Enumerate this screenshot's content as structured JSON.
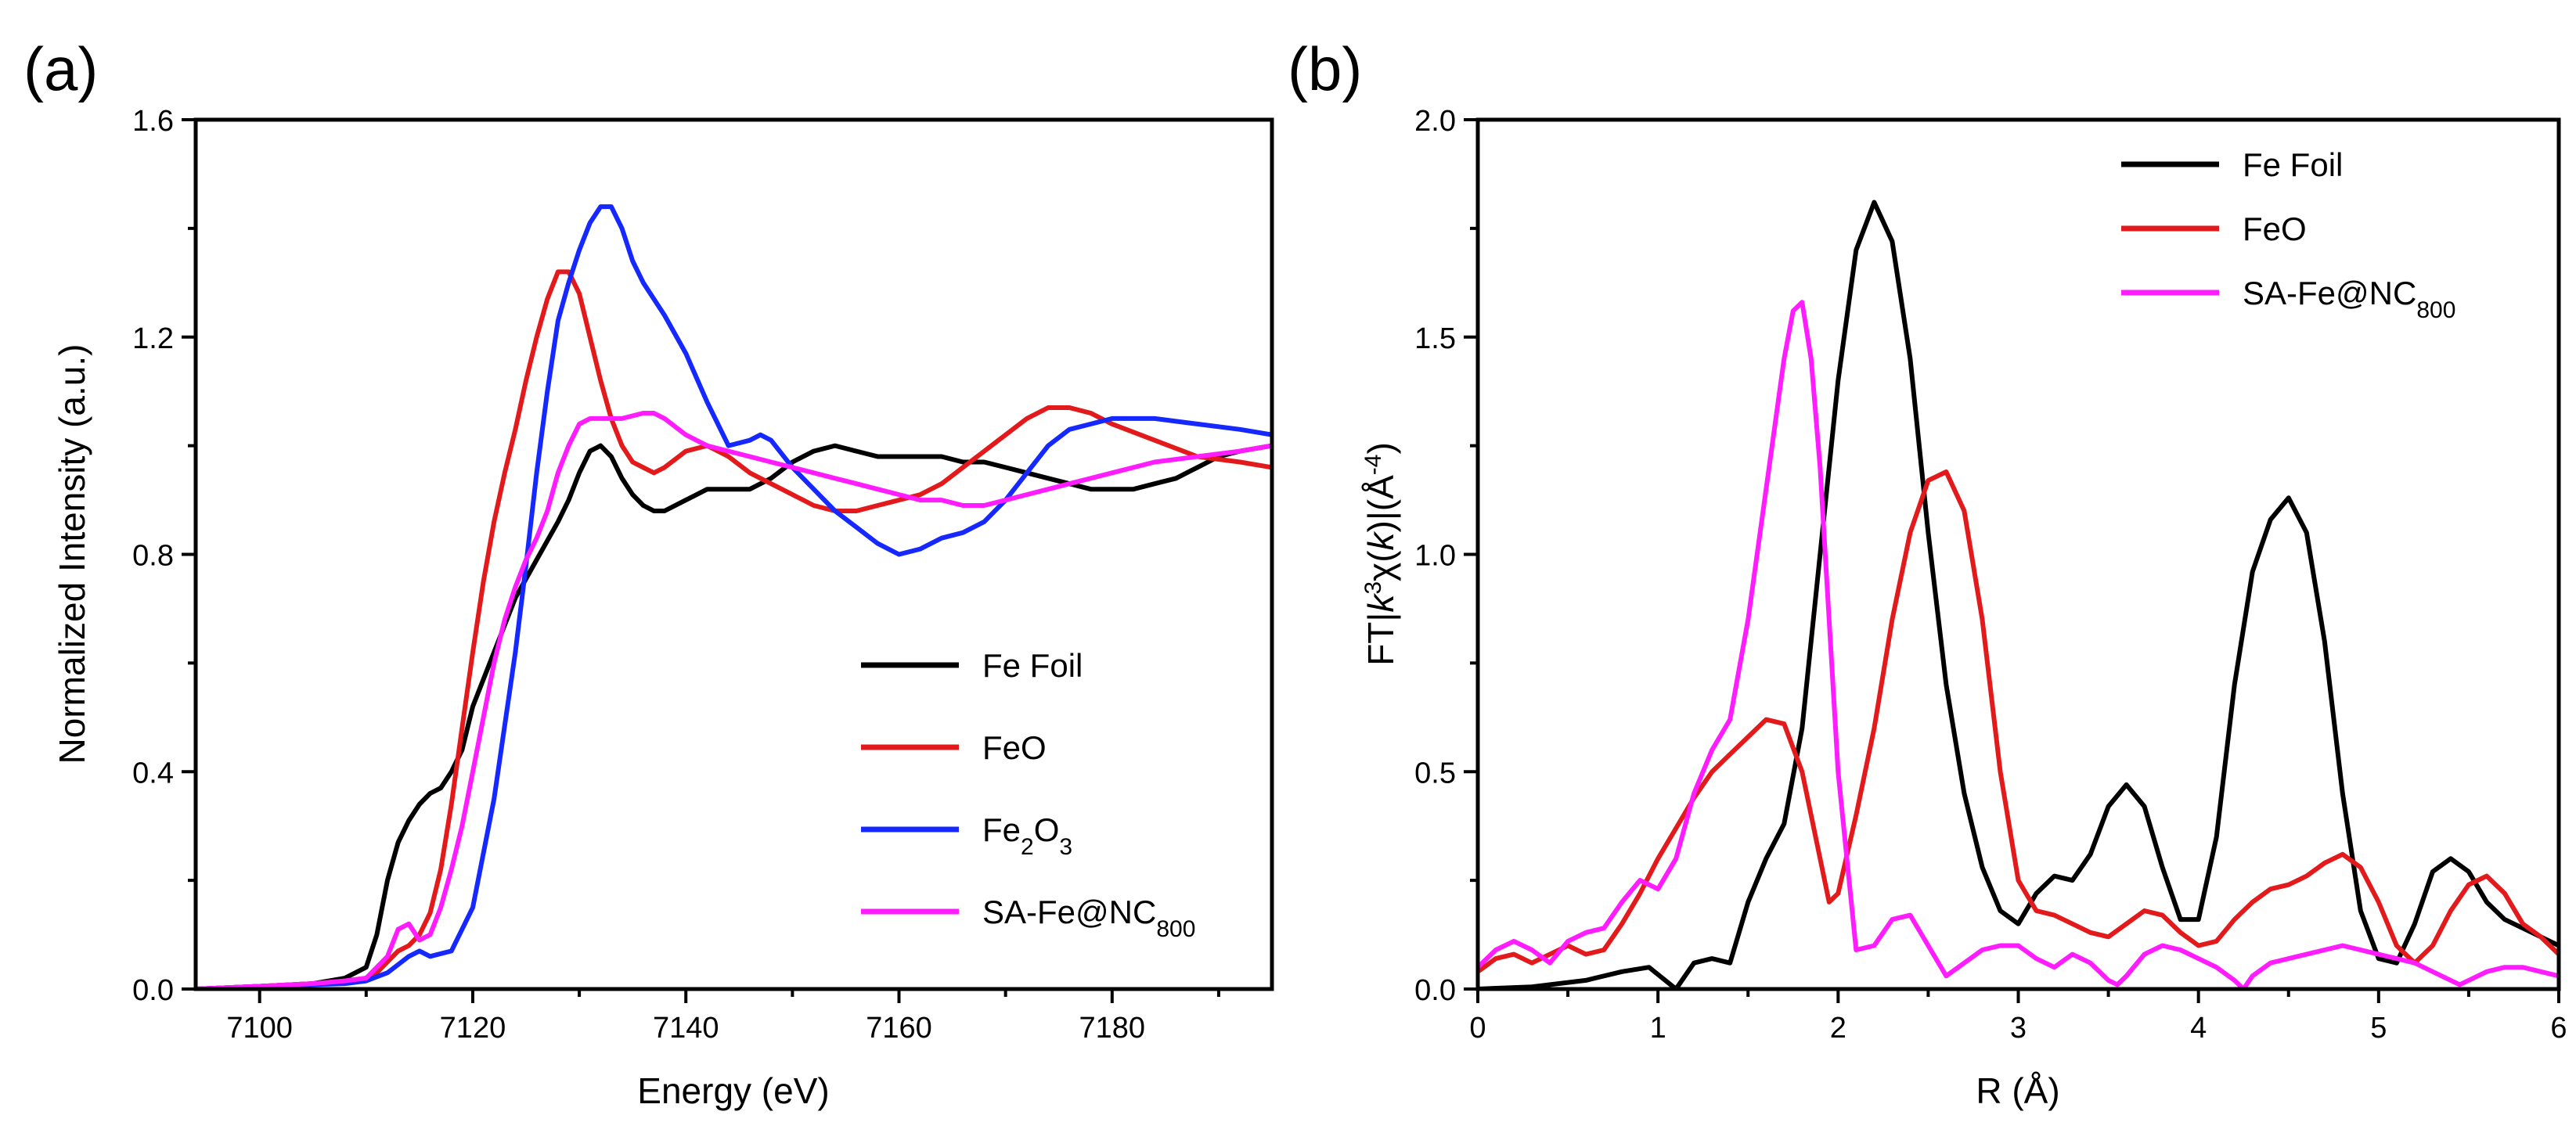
{
  "chart_data": [
    {
      "type": "line",
      "panel_label": "(a)",
      "xlabel": "Energy (eV)",
      "ylabel": "Normalized Intensity (a.u.)",
      "xlim": [
        7094,
        7195
      ],
      "ylim": [
        0,
        1.6
      ],
      "xticks": [
        7100,
        7120,
        7140,
        7160,
        7180
      ],
      "xtick_labels": [
        "7100",
        "7120",
        "7140",
        "7160",
        "7180"
      ],
      "yticks": [
        0,
        0.4,
        0.8,
        1.2,
        1.6
      ],
      "ytick_labels": [
        "0.0",
        "0.4",
        "0.8",
        "1.2",
        "1.6"
      ],
      "legend_position": "bottom-right",
      "series": [
        {
          "name": "Fe Foil",
          "legend_main": "Fe Foil",
          "legend_sub": "",
          "legend_tail": "",
          "color": "#000000",
          "x": [
            7094,
            7100,
            7105,
            7108,
            7110,
            7111,
            7112,
            7113,
            7114,
            7115,
            7116,
            7117,
            7118,
            7119,
            7120,
            7122,
            7124,
            7126,
            7128,
            7129,
            7130,
            7131,
            7132,
            7133,
            7134,
            7135,
            7136,
            7137,
            7138,
            7140,
            7142,
            7144,
            7146,
            7148,
            7150,
            7152,
            7154,
            7156,
            7158,
            7160,
            7162,
            7164,
            7166,
            7168,
            7170,
            7172,
            7174,
            7176,
            7178,
            7180,
            7182,
            7184,
            7186,
            7188,
            7190,
            7192,
            7195
          ],
          "y": [
            0.0,
            0.005,
            0.01,
            0.02,
            0.04,
            0.1,
            0.2,
            0.27,
            0.31,
            0.34,
            0.36,
            0.37,
            0.4,
            0.44,
            0.52,
            0.62,
            0.72,
            0.79,
            0.86,
            0.9,
            0.95,
            0.99,
            1.0,
            0.98,
            0.94,
            0.91,
            0.89,
            0.88,
            0.88,
            0.9,
            0.92,
            0.92,
            0.92,
            0.94,
            0.97,
            0.99,
            1.0,
            0.99,
            0.98,
            0.98,
            0.98,
            0.98,
            0.97,
            0.97,
            0.96,
            0.95,
            0.94,
            0.93,
            0.92,
            0.92,
            0.92,
            0.93,
            0.94,
            0.96,
            0.98,
            0.99,
            1.0
          ]
        },
        {
          "name": "FeO",
          "legend_main": "FeO",
          "legend_sub": "",
          "legend_tail": "",
          "color": "#e31a1c",
          "x": [
            7094,
            7100,
            7105,
            7108,
            7110,
            7111,
            7112,
            7113,
            7114,
            7115,
            7116,
            7117,
            7118,
            7119,
            7120,
            7121,
            7122,
            7123,
            7124,
            7125,
            7126,
            7127,
            7128,
            7129,
            7130,
            7131,
            7132,
            7133,
            7134,
            7135,
            7136,
            7137,
            7138,
            7140,
            7142,
            7144,
            7146,
            7148,
            7150,
            7152,
            7154,
            7156,
            7158,
            7160,
            7162,
            7164,
            7166,
            7168,
            7170,
            7172,
            7174,
            7176,
            7178,
            7180,
            7184,
            7188,
            7192,
            7195
          ],
          "y": [
            0.0,
            0.005,
            0.01,
            0.015,
            0.02,
            0.03,
            0.05,
            0.07,
            0.08,
            0.1,
            0.14,
            0.22,
            0.34,
            0.48,
            0.62,
            0.75,
            0.86,
            0.95,
            1.03,
            1.12,
            1.2,
            1.27,
            1.32,
            1.32,
            1.28,
            1.2,
            1.12,
            1.05,
            1.0,
            0.97,
            0.96,
            0.95,
            0.96,
            0.99,
            1.0,
            0.98,
            0.95,
            0.93,
            0.91,
            0.89,
            0.88,
            0.88,
            0.89,
            0.9,
            0.91,
            0.93,
            0.96,
            0.99,
            1.02,
            1.05,
            1.07,
            1.07,
            1.06,
            1.04,
            1.01,
            0.98,
            0.97,
            0.96
          ]
        },
        {
          "name": "Fe2O3",
          "legend_main": "Fe",
          "legend_sub": "2",
          "legend_tail": "O",
          "legend_sub2": "3",
          "color": "#1428ff",
          "x": [
            7094,
            7100,
            7105,
            7108,
            7110,
            7112,
            7114,
            7115,
            7116,
            7118,
            7120,
            7122,
            7124,
            7125,
            7126,
            7127,
            7128,
            7129,
            7130,
            7131,
            7132,
            7133,
            7134,
            7135,
            7136,
            7138,
            7140,
            7142,
            7144,
            7146,
            7147,
            7148,
            7150,
            7152,
            7154,
            7156,
            7158,
            7160,
            7162,
            7164,
            7166,
            7168,
            7170,
            7172,
            7174,
            7176,
            7178,
            7180,
            7184,
            7188,
            7192,
            7195
          ],
          "y": [
            0.0,
            0.005,
            0.008,
            0.01,
            0.015,
            0.03,
            0.06,
            0.07,
            0.06,
            0.07,
            0.15,
            0.35,
            0.62,
            0.78,
            0.95,
            1.1,
            1.23,
            1.3,
            1.36,
            1.41,
            1.44,
            1.44,
            1.4,
            1.34,
            1.3,
            1.24,
            1.17,
            1.08,
            1.0,
            1.01,
            1.02,
            1.01,
            0.96,
            0.92,
            0.88,
            0.85,
            0.82,
            0.8,
            0.81,
            0.83,
            0.84,
            0.86,
            0.9,
            0.95,
            1.0,
            1.03,
            1.04,
            1.05,
            1.05,
            1.04,
            1.03,
            1.02
          ]
        },
        {
          "name": "SA-Fe@NC800",
          "legend_main": "SA-Fe@NC",
          "legend_sub": "800",
          "legend_tail": "",
          "color": "#ff1cff",
          "x": [
            7094,
            7100,
            7105,
            7108,
            7110,
            7112,
            7113,
            7114,
            7115,
            7116,
            7117,
            7118,
            7119,
            7120,
            7121,
            7122,
            7123,
            7124,
            7125,
            7126,
            7127,
            7128,
            7129,
            7130,
            7131,
            7132,
            7134,
            7136,
            7137,
            7138,
            7140,
            7142,
            7144,
            7146,
            7148,
            7150,
            7152,
            7154,
            7156,
            7158,
            7160,
            7162,
            7164,
            7166,
            7168,
            7170,
            7172,
            7174,
            7176,
            7180,
            7184,
            7188,
            7192,
            7195
          ],
          "y": [
            0.0,
            0.005,
            0.01,
            0.015,
            0.02,
            0.06,
            0.11,
            0.12,
            0.09,
            0.1,
            0.15,
            0.22,
            0.3,
            0.4,
            0.5,
            0.6,
            0.68,
            0.74,
            0.79,
            0.83,
            0.88,
            0.95,
            1.0,
            1.04,
            1.05,
            1.05,
            1.05,
            1.06,
            1.06,
            1.05,
            1.02,
            1.0,
            0.99,
            0.98,
            0.97,
            0.96,
            0.95,
            0.94,
            0.93,
            0.92,
            0.91,
            0.9,
            0.9,
            0.89,
            0.89,
            0.9,
            0.91,
            0.92,
            0.93,
            0.95,
            0.97,
            0.98,
            0.99,
            1.0
          ]
        }
      ]
    },
    {
      "type": "line",
      "panel_label": "(b)",
      "xlabel": "R (Å)",
      "ylabel": "FT|k³χ(k)|(Å⁻⁴)",
      "ylabel_parts": {
        "a": "FT",
        "b": "k",
        "c": "3",
        "d": "χ(",
        "e": "k",
        "f": ")",
        "g": "(Å",
        "h": "-4",
        "i": ")"
      },
      "xlim": [
        0,
        6
      ],
      "ylim": [
        0,
        2.0
      ],
      "xticks": [
        0,
        1,
        2,
        3,
        4,
        5,
        6
      ],
      "xtick_labels": [
        "0",
        "1",
        "2",
        "3",
        "4",
        "5",
        "6"
      ],
      "yticks": [
        0,
        0.5,
        1.0,
        1.5,
        2.0
      ],
      "ytick_labels": [
        "0.0",
        "0.5",
        "1.0",
        "1.5",
        "2.0"
      ],
      "legend_position": "top-right",
      "series": [
        {
          "name": "Fe Foil",
          "legend_main": "Fe Foil",
          "legend_sub": "",
          "legend_tail": "",
          "color": "#000000",
          "x": [
            0,
            0.3,
            0.6,
            0.8,
            0.95,
            1.1,
            1.2,
            1.3,
            1.4,
            1.5,
            1.6,
            1.7,
            1.8,
            1.9,
            2.0,
            2.1,
            2.2,
            2.3,
            2.4,
            2.5,
            2.6,
            2.7,
            2.8,
            2.9,
            3.0,
            3.1,
            3.2,
            3.3,
            3.4,
            3.5,
            3.6,
            3.7,
            3.8,
            3.9,
            4.0,
            4.1,
            4.2,
            4.3,
            4.4,
            4.5,
            4.6,
            4.7,
            4.8,
            4.9,
            5.0,
            5.1,
            5.2,
            5.3,
            5.4,
            5.5,
            5.6,
            5.7,
            5.8,
            5.9,
            6.0
          ],
          "y": [
            0.0,
            0.005,
            0.02,
            0.04,
            0.05,
            0.0,
            0.06,
            0.07,
            0.06,
            0.2,
            0.3,
            0.38,
            0.6,
            1.0,
            1.4,
            1.7,
            1.81,
            1.72,
            1.45,
            1.05,
            0.7,
            0.45,
            0.28,
            0.18,
            0.15,
            0.22,
            0.26,
            0.25,
            0.31,
            0.42,
            0.47,
            0.42,
            0.28,
            0.16,
            0.16,
            0.35,
            0.7,
            0.96,
            1.08,
            1.13,
            1.05,
            0.8,
            0.45,
            0.18,
            0.07,
            0.06,
            0.15,
            0.27,
            0.3,
            0.27,
            0.2,
            0.16,
            0.14,
            0.12,
            0.1
          ]
        },
        {
          "name": "FeO",
          "legend_main": "FeO",
          "legend_sub": "",
          "legend_tail": "",
          "color": "#e31a1c",
          "x": [
            0,
            0.1,
            0.2,
            0.3,
            0.4,
            0.5,
            0.6,
            0.7,
            0.8,
            0.9,
            1.0,
            1.1,
            1.2,
            1.3,
            1.4,
            1.5,
            1.6,
            1.7,
            1.8,
            1.9,
            1.95,
            2.0,
            2.1,
            2.2,
            2.3,
            2.4,
            2.5,
            2.6,
            2.7,
            2.8,
            2.9,
            3.0,
            3.1,
            3.2,
            3.3,
            3.4,
            3.5,
            3.6,
            3.7,
            3.8,
            3.9,
            4.0,
            4.1,
            4.2,
            4.3,
            4.4,
            4.5,
            4.6,
            4.7,
            4.8,
            4.9,
            5.0,
            5.1,
            5.2,
            5.3,
            5.4,
            5.5,
            5.6,
            5.7,
            5.8,
            5.9,
            6.0
          ],
          "y": [
            0.04,
            0.07,
            0.08,
            0.06,
            0.08,
            0.1,
            0.08,
            0.09,
            0.15,
            0.22,
            0.3,
            0.37,
            0.44,
            0.5,
            0.54,
            0.58,
            0.62,
            0.61,
            0.5,
            0.3,
            0.2,
            0.22,
            0.4,
            0.6,
            0.85,
            1.05,
            1.17,
            1.19,
            1.1,
            0.85,
            0.5,
            0.25,
            0.18,
            0.17,
            0.15,
            0.13,
            0.12,
            0.15,
            0.18,
            0.17,
            0.13,
            0.1,
            0.11,
            0.16,
            0.2,
            0.23,
            0.24,
            0.26,
            0.29,
            0.31,
            0.28,
            0.2,
            0.1,
            0.06,
            0.1,
            0.18,
            0.24,
            0.26,
            0.22,
            0.15,
            0.12,
            0.08
          ]
        },
        {
          "name": "SA-Fe@NC800",
          "legend_main": "SA-Fe@NC",
          "legend_sub": "800",
          "legend_tail": "",
          "color": "#ff1cff",
          "x": [
            0,
            0.1,
            0.2,
            0.3,
            0.4,
            0.5,
            0.6,
            0.7,
            0.8,
            0.9,
            1.0,
            1.1,
            1.2,
            1.3,
            1.4,
            1.5,
            1.6,
            1.7,
            1.75,
            1.8,
            1.85,
            1.9,
            2.0,
            2.1,
            2.2,
            2.3,
            2.4,
            2.5,
            2.6,
            2.7,
            2.8,
            2.9,
            3.0,
            3.1,
            3.2,
            3.3,
            3.4,
            3.5,
            3.55,
            3.6,
            3.7,
            3.8,
            3.9,
            4.0,
            4.1,
            4.2,
            4.25,
            4.3,
            4.4,
            4.5,
            4.6,
            4.7,
            4.8,
            4.9,
            5.0,
            5.1,
            5.2,
            5.3,
            5.4,
            5.45,
            5.5,
            5.6,
            5.7,
            5.8,
            5.9,
            6.0
          ],
          "y": [
            0.05,
            0.09,
            0.11,
            0.09,
            0.06,
            0.11,
            0.13,
            0.14,
            0.2,
            0.25,
            0.23,
            0.3,
            0.45,
            0.55,
            0.62,
            0.85,
            1.15,
            1.45,
            1.56,
            1.58,
            1.45,
            1.2,
            0.5,
            0.09,
            0.1,
            0.16,
            0.17,
            0.1,
            0.03,
            0.06,
            0.09,
            0.1,
            0.1,
            0.07,
            0.05,
            0.08,
            0.06,
            0.02,
            0.01,
            0.03,
            0.08,
            0.1,
            0.09,
            0.07,
            0.05,
            0.02,
            0.0,
            0.03,
            0.06,
            0.07,
            0.08,
            0.09,
            0.1,
            0.09,
            0.08,
            0.07,
            0.06,
            0.04,
            0.02,
            0.01,
            0.02,
            0.04,
            0.05,
            0.05,
            0.04,
            0.03
          ]
        }
      ]
    }
  ]
}
